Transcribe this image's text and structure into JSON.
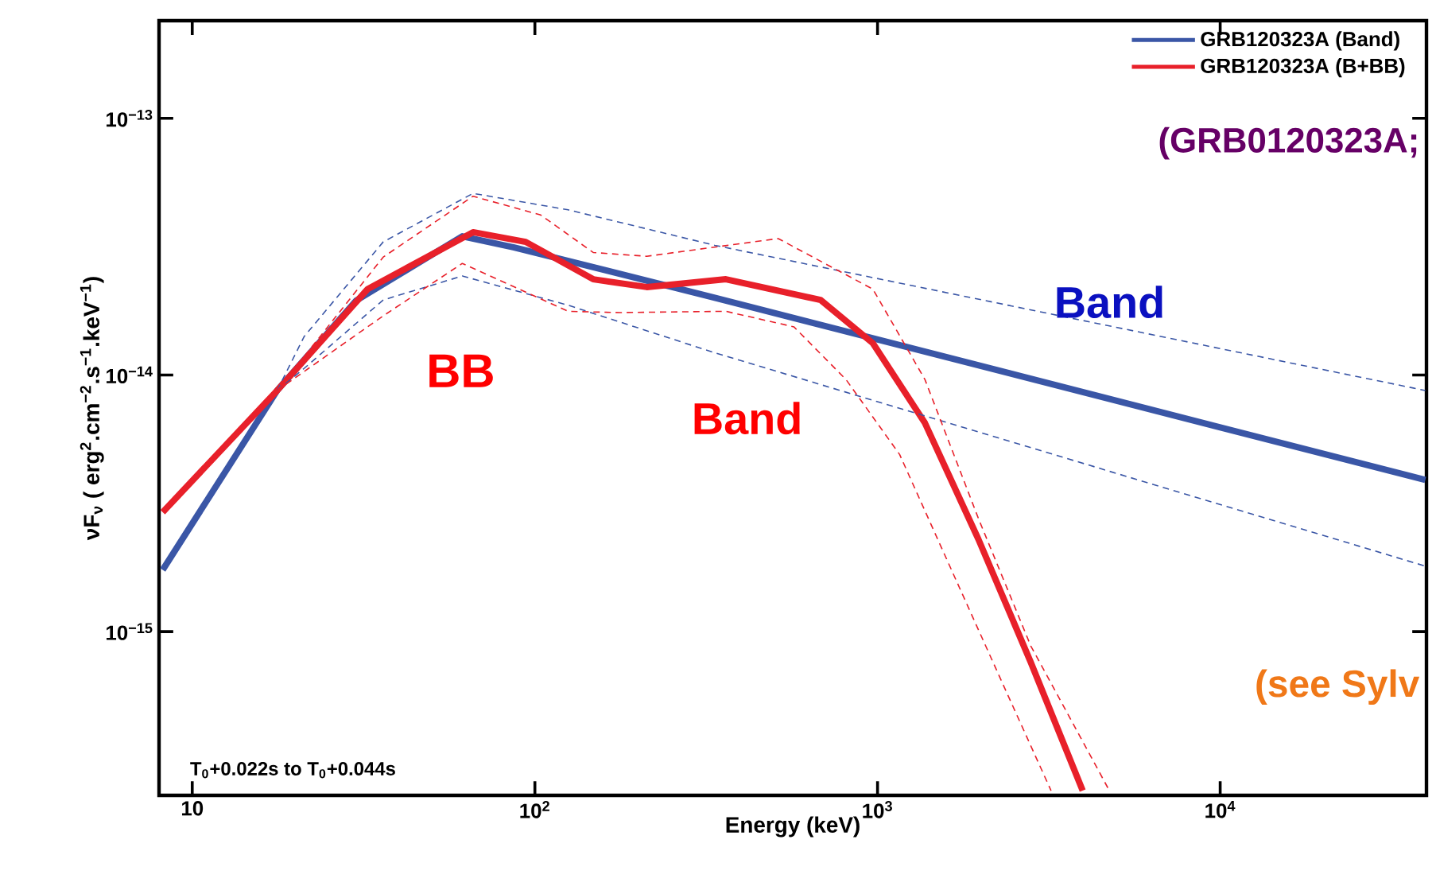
{
  "chart_data": {
    "type": "line",
    "log": "xy",
    "xlabel": "Energy (keV)",
    "ylabel": "νF$_{ν}$ ( erg$^{2}$.cm$^{−2}$.s$^{−1}$.keV$^{−1}$)",
    "xlim": [
      8,
      40000
    ],
    "ylim": [
      2.3e-16,
      2.4e-13
    ],
    "xticks": [
      10,
      {
        "value": 100,
        "label": "10$^{2}$"
      },
      {
        "value": 1000,
        "label": "10$^{3}$"
      },
      {
        "value": 10000,
        "label": "10$^{4}$"
      }
    ],
    "yticks": [
      {
        "value": 1e-15,
        "label": "10$^{−15}$"
      },
      {
        "value": 1e-14,
        "label": "10$^{−14}$"
      },
      {
        "value": 1e-13,
        "label": "10$^{−13}$"
      }
    ],
    "legend": "top right",
    "marker": "none",
    "annotations": [
      "BB",
      "Band",
      "Band",
      "(GRB0120323A;",
      "(see Sylv",
      "T$_{0}$+0.022s to T$_{0}$+0.044s"
    ],
    "series": [
      {
        "name": "GRB120323A (Band)",
        "color": "#3a56a6",
        "line_style": "solid",
        "x": [
          8.2,
          17.7,
          30.1,
          61.4,
          87,
          335,
          39700
        ],
        "values": [
          1.74e-15,
          8.7e-15,
          1.95e-14,
          3.47e-14,
          3.14e-14,
          2e-14,
          3.9e-15
        ]
      },
      {
        "name": "GRB120323A (B+BB)",
        "color": "#e8202a",
        "line_style": "solid",
        "x": [
          8.2,
          17.7,
          32.5,
          66,
          94,
          148,
          212,
          361,
          682,
          969,
          1375,
          1970,
          2800,
          3970
        ],
        "values": [
          2.92e-15,
          8.7e-15,
          2.16e-14,
          3.6e-14,
          3.3e-14,
          2.36e-14,
          2.2e-14,
          2.36e-14,
          1.96e-14,
          1.33e-14,
          6.5e-15,
          2.29e-15,
          7.6e-16,
          2.4e-16
        ]
      },
      {
        "color": "#3a56a6",
        "line_style": "dashed",
        "x": [
          17.7,
          21.2,
          36.1,
          66,
          125,
          335,
          39700
        ],
        "values": [
          8.7e-15,
          1.41e-14,
          3.3e-14,
          5.1e-14,
          4.4e-14,
          3.2e-14,
          8.7e-15
        ]
      },
      {
        "color": "#3a56a6",
        "line_style": "dashed",
        "x": [
          17.7,
          21.2,
          36.1,
          61.4,
          125,
          335,
          39700
        ],
        "values": [
          8.7e-15,
          1.06e-14,
          1.96e-14,
          2.43e-14,
          1.87e-14,
          1.22e-14,
          1.8e-15
        ]
      },
      {
        "color": "#e8202a",
        "line_style": "dashed",
        "x": [
          17.7,
          36.1,
          66,
          104,
          148,
          212,
          513,
          969,
          1375,
          1970,
          2800,
          4750
        ],
        "values": [
          8.7e-15,
          2.88e-14,
          4.97e-14,
          4.2e-14,
          3e-14,
          2.9e-14,
          3.4e-14,
          2.16e-14,
          9.6e-15,
          2.76e-15,
          8.8e-16,
          2.4e-16
        ]
      },
      {
        "color": "#e8202a",
        "line_style": "dashed",
        "x": [
          17.7,
          36.1,
          61.4,
          125,
          177,
          361,
          570,
          809,
          1160,
          1650,
          2340,
          3210
        ],
        "values": [
          8.7e-15,
          1.7e-14,
          2.72e-14,
          1.77e-14,
          1.75e-14,
          1.77e-14,
          1.54e-14,
          9.6e-15,
          4.9e-15,
          1.72e-15,
          6.1e-16,
          2.4e-16
        ]
      }
    ]
  }
}
